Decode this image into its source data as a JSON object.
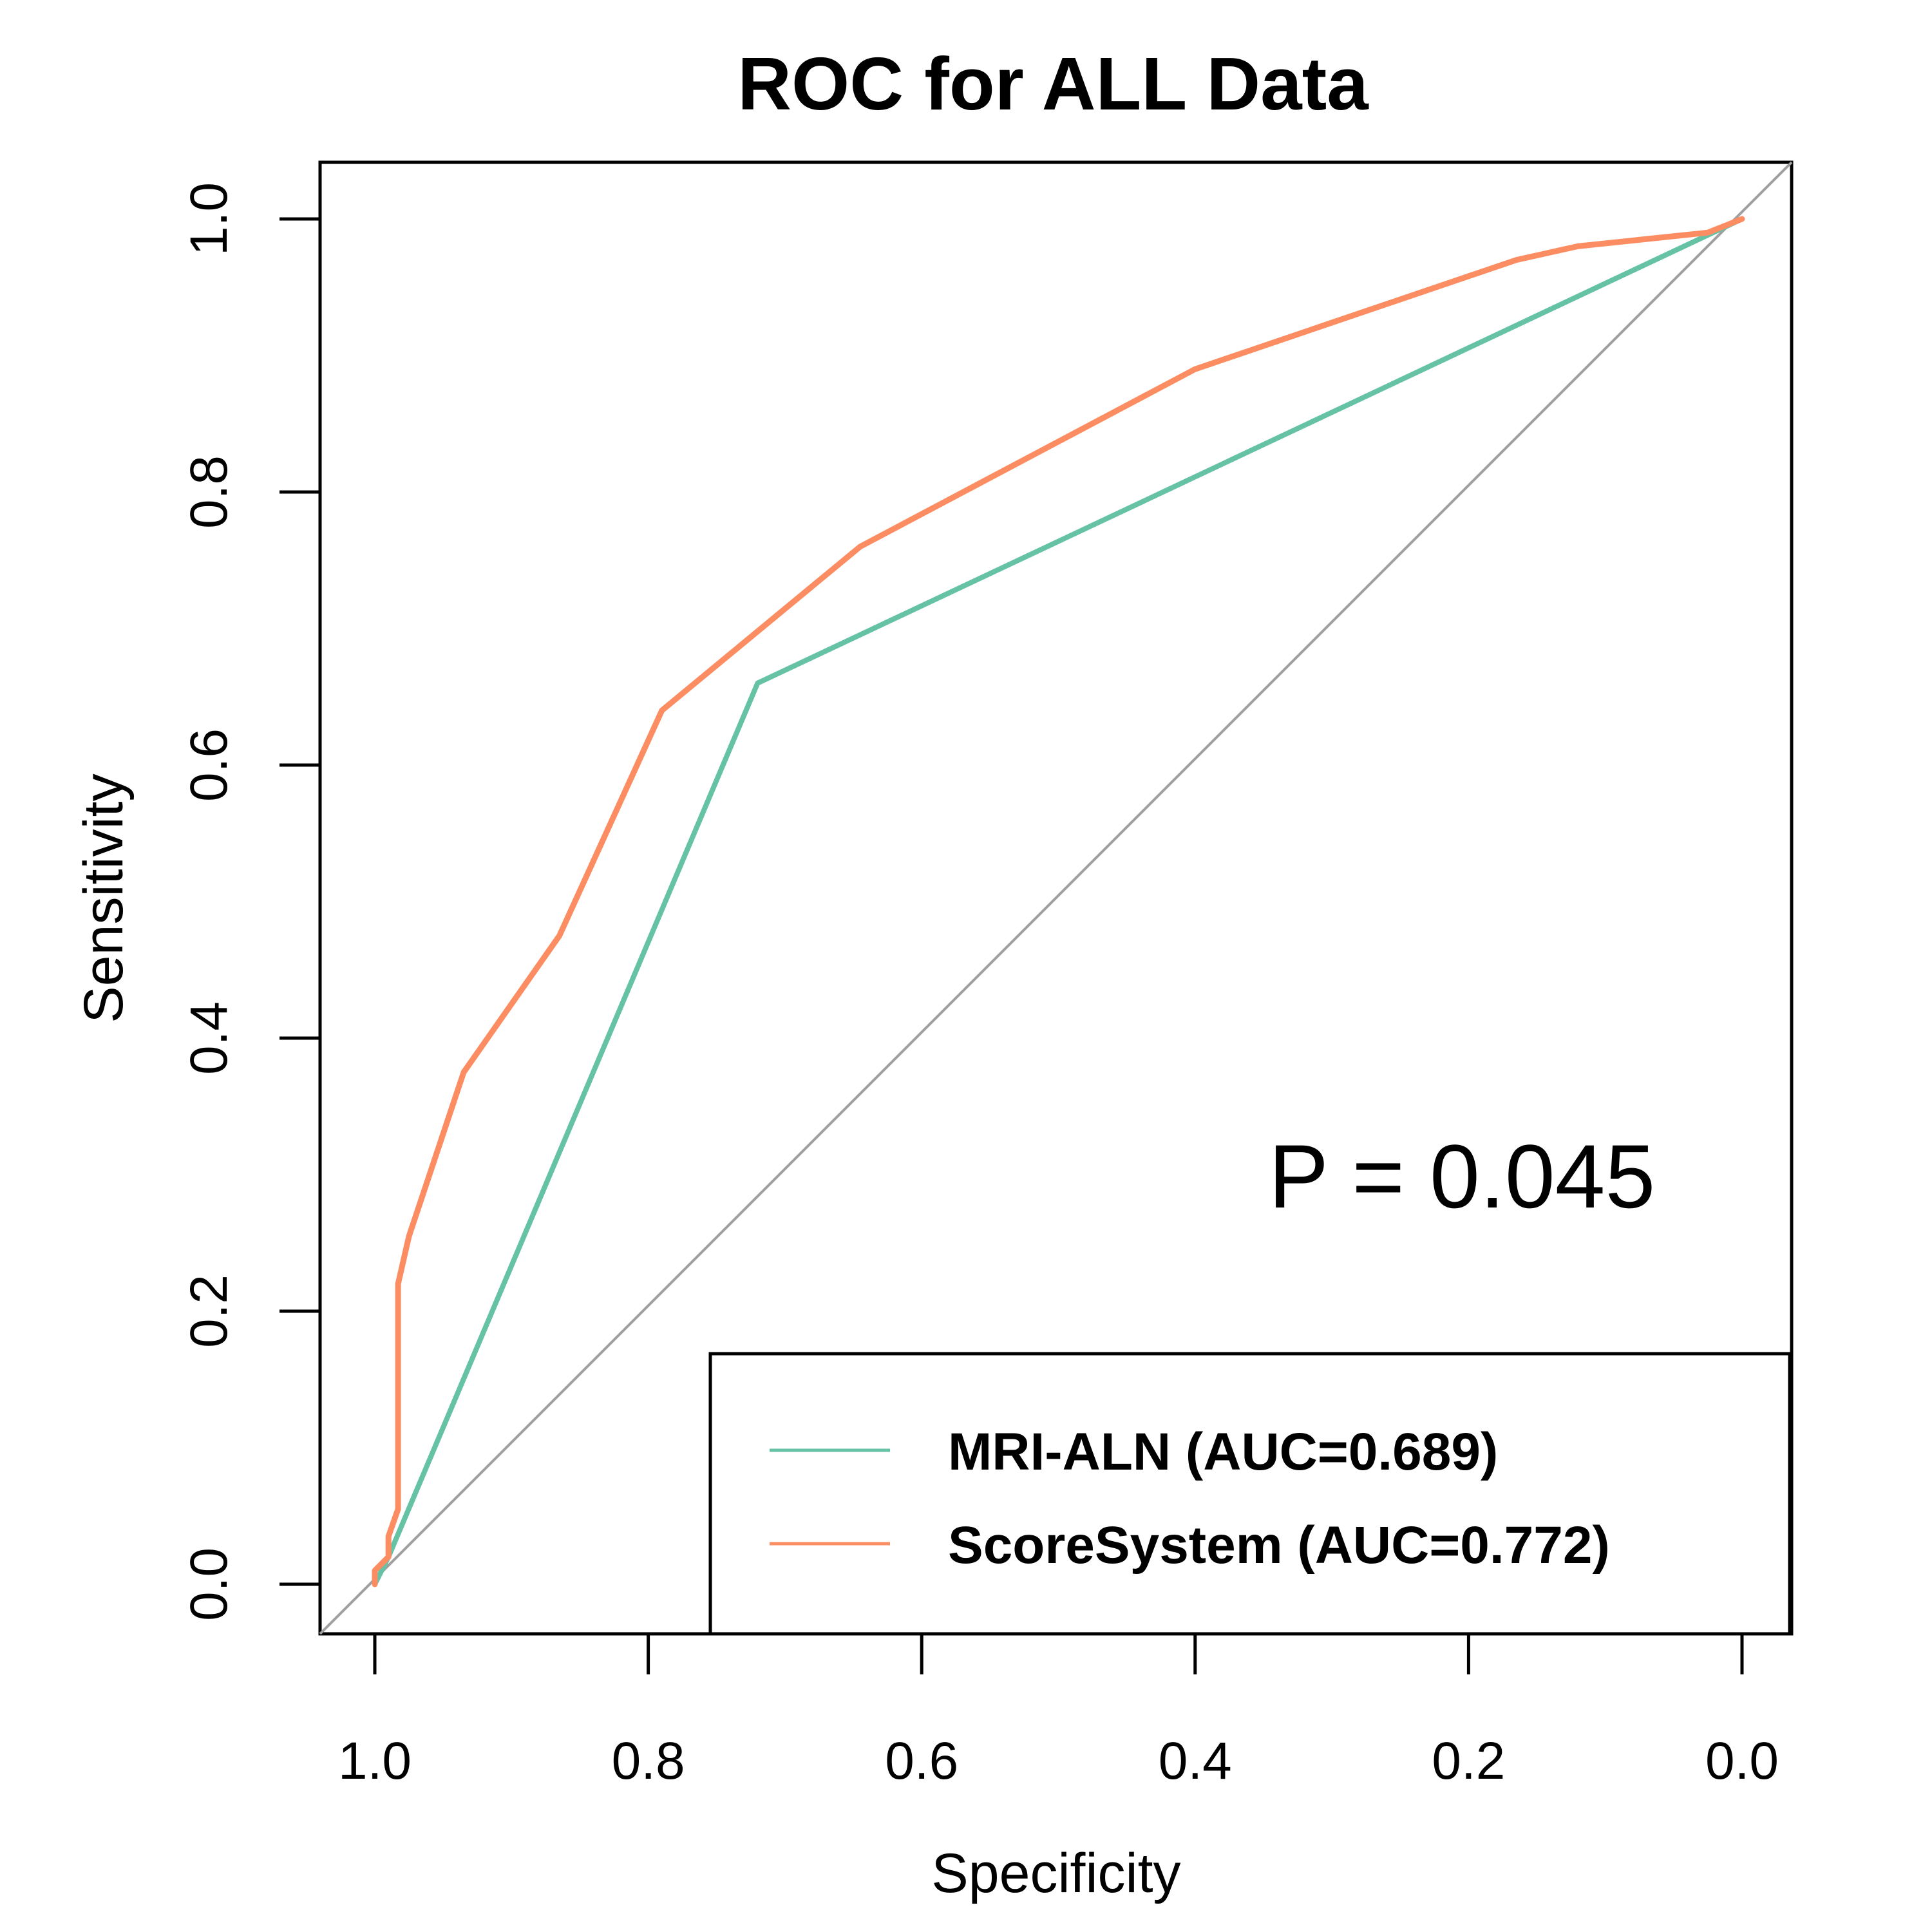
{
  "chart_data": {
    "type": "line",
    "title": "ROC for ALL Data",
    "xlabel": "Specificity",
    "ylabel": "Sensitivity",
    "xlim": [
      1.0,
      0.0
    ],
    "ylim": [
      0.0,
      1.0
    ],
    "x_ticks": [
      "1.0",
      "0.8",
      "0.6",
      "0.4",
      "0.2",
      "0.0"
    ],
    "y_ticks": [
      "0.0",
      "0.2",
      "0.4",
      "0.6",
      "0.8",
      "1.0"
    ],
    "x_tick_values": [
      1.0,
      0.8,
      0.6,
      0.4,
      0.2,
      0.0
    ],
    "y_tick_values": [
      0.0,
      0.2,
      0.4,
      0.6,
      0.8,
      1.0
    ],
    "grid": false,
    "legend_position": "bottom-right",
    "annotation": "P = 0.045",
    "reference_line": {
      "color": "#a0a0a0",
      "from": [
        1.0,
        0.0
      ],
      "to": [
        0.0,
        1.0
      ]
    },
    "series": [
      {
        "name": "MRI-ALN (AUC=0.689)",
        "color": "#66c2a5",
        "specificity": [
          1.0,
          0.99,
          0.72,
          0.0
        ],
        "sensitivity": [
          0.0,
          0.02,
          0.66,
          1.0
        ]
      },
      {
        "name": "ScoreSystem (AUC=0.772)",
        "color": "#fc8d62",
        "specificity": [
          1.0,
          1.0,
          0.99,
          0.99,
          0.983,
          0.983,
          0.975,
          0.935,
          0.865,
          0.79,
          0.645,
          0.4,
          0.165,
          0.12,
          0.025,
          0.0
        ],
        "sensitivity": [
          0.0,
          0.01,
          0.02,
          0.035,
          0.055,
          0.22,
          0.255,
          0.375,
          0.475,
          0.64,
          0.76,
          0.89,
          0.97,
          0.98,
          0.99,
          1.0
        ]
      }
    ]
  }
}
